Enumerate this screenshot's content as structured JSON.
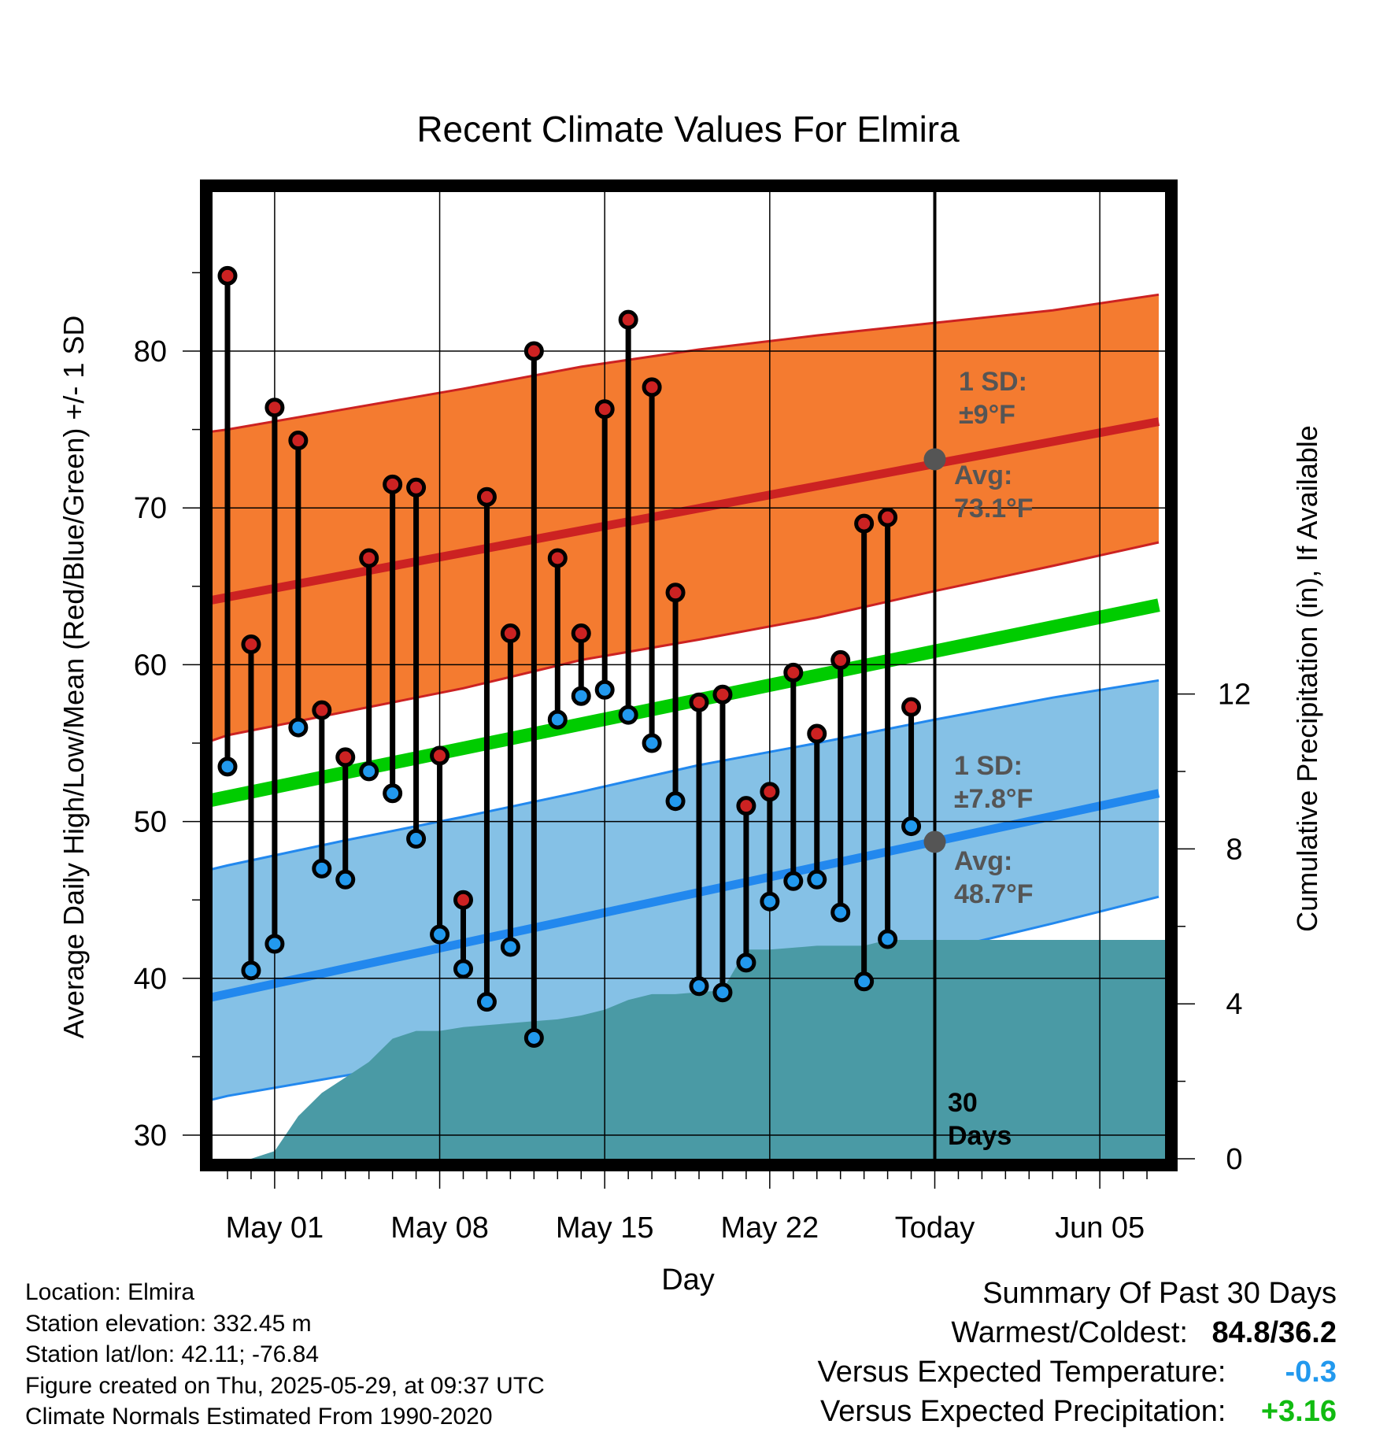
{
  "chart_data": {
    "type": "scatter",
    "title": "Recent Climate Values For Elmira",
    "xlabel": "Day",
    "ylabel": "Average Daily High/Low/Mean (Red/Blue/Green) +/- 1 SD",
    "y2label": "Cumulative Precipitation (in), If Available",
    "ylim": [
      28,
      90
    ],
    "y2lim": [
      0,
      30
    ],
    "yticks": [
      "30",
      "40",
      "50",
      "60",
      "70",
      "80"
    ],
    "y2ticks": [
      "0",
      "4",
      "8",
      "12"
    ],
    "xticks": [
      "May 01",
      "May 08",
      "May 15",
      "May 22",
      "Today",
      "Jun 05"
    ],
    "days": [
      "Apr 29",
      "Apr 30",
      "May 01",
      "May 02",
      "May 03",
      "May 04",
      "May 05",
      "May 06",
      "May 07",
      "May 08",
      "May 09",
      "May 10",
      "May 11",
      "May 12",
      "May 13",
      "May 14",
      "May 15",
      "May 16",
      "May 17",
      "May 18",
      "May 19",
      "May 20",
      "May 21",
      "May 22",
      "May 23",
      "May 24",
      "May 25",
      "May 26",
      "May 27",
      "May 28"
    ],
    "series": [
      {
        "name": "High",
        "color": "#cc2222",
        "values": [
          84.8,
          61.3,
          76.4,
          74.3,
          57.1,
          54.1,
          66.8,
          71.5,
          71.3,
          54.2,
          45.0,
          70.7,
          62.0,
          80.0,
          66.8,
          62.0,
          76.3,
          82.0,
          77.7,
          64.6,
          57.6,
          58.1,
          51.0,
          51.9,
          59.5,
          55.6,
          60.3,
          69.0,
          69.4,
          57.3
        ]
      },
      {
        "name": "Low",
        "color": "#2299ee",
        "values": [
          53.5,
          40.5,
          42.2,
          56.0,
          47.0,
          46.3,
          53.2,
          51.8,
          48.9,
          42.8,
          40.6,
          38.5,
          42.0,
          36.2,
          56.5,
          58.0,
          58.4,
          56.8,
          55.0,
          51.3,
          39.5,
          39.1,
          41.0,
          44.9,
          46.2,
          46.3,
          44.2,
          39.8,
          42.5,
          49.7
        ]
      },
      {
        "name": "Precipitation",
        "color": "#4a9aa5",
        "values": [
          0.0,
          0.0,
          0.2,
          1.1,
          1.7,
          2.1,
          2.5,
          3.1,
          3.3,
          3.3,
          3.4,
          3.45,
          3.5,
          3.55,
          3.6,
          3.7,
          3.85,
          4.1,
          4.25,
          4.25,
          4.3,
          4.35,
          5.4,
          5.4,
          5.45,
          5.5,
          5.5,
          5.5,
          5.65,
          5.65
        ]
      }
    ],
    "normals": {
      "mean_line": [
        [
          -2.5,
          50.8
        ],
        [
          39.5,
          63.8
        ]
      ],
      "high_avg": [
        [
          -2.5,
          63.6
        ],
        [
          39.5,
          75.5
        ]
      ],
      "high_sd_upper": [
        [
          -2.5,
          74.5
        ],
        [
          0,
          75.0
        ],
        [
          5,
          76.3
        ],
        [
          10,
          77.6
        ],
        [
          15,
          79.0
        ],
        [
          20,
          80.1
        ],
        [
          25,
          81.0
        ],
        [
          30,
          81.8
        ],
        [
          35,
          82.6
        ],
        [
          39.5,
          83.6
        ]
      ],
      "high_sd_lower": [
        [
          -2.5,
          54.2
        ],
        [
          0,
          55.5
        ],
        [
          5,
          57.0
        ],
        [
          10,
          58.5
        ],
        [
          15,
          60.3
        ],
        [
          20,
          61.6
        ],
        [
          25,
          63.0
        ],
        [
          30,
          64.7
        ],
        [
          35,
          66.3
        ],
        [
          39.5,
          67.8
        ]
      ],
      "low_avg": [
        [
          -2.5,
          38.2
        ],
        [
          39.5,
          51.8
        ]
      ],
      "low_sd_upper": [
        [
          -2.5,
          46.3
        ],
        [
          0,
          47.2
        ],
        [
          5,
          48.8
        ],
        [
          10,
          50.3
        ],
        [
          15,
          51.9
        ],
        [
          20,
          53.6
        ],
        [
          25,
          55.0
        ],
        [
          30,
          56.5
        ],
        [
          35,
          57.9
        ],
        [
          39.5,
          59.0
        ]
      ],
      "low_sd_lower": [
        [
          -2.5,
          31.6
        ],
        [
          0,
          32.5
        ],
        [
          5,
          33.8
        ],
        [
          10,
          35.2
        ],
        [
          15,
          36.7
        ],
        [
          20,
          38.5
        ],
        [
          25,
          40.0
        ],
        [
          30,
          41.7
        ],
        [
          35,
          43.5
        ],
        [
          39.5,
          45.2
        ]
      ]
    },
    "annotations": {
      "high_sd_label": "1 SD:",
      "high_sd_value": "±9°F",
      "high_avg_label": "Avg:",
      "high_avg_value": "73.1°F",
      "low_sd_label": "1 SD:",
      "low_sd_value": "±7.8°F",
      "low_avg_label": "Avg:",
      "low_avg_value": "48.7°F",
      "window_count": "30",
      "window_unit": "Days",
      "today_high_avg": 73.1,
      "today_low_avg": 48.7
    },
    "colors": {
      "high_band": "#f47b30",
      "high_line": "#cc2222",
      "low_band": "#85c1e6",
      "low_line": "#2288ee",
      "mean_line": "#00cc00",
      "precip_fill": "#4a9aa5",
      "marker_high": "#cc2222",
      "marker_low": "#2299ee",
      "marker_avg": "#555555"
    }
  },
  "info": {
    "location": "Location: Elmira",
    "elevation": "Station elevation: 332.45 m",
    "latlon": "Station lat/lon: 42.11; -76.84",
    "created": "Figure created on Thu, 2025-05-29, at 09:37 UTC",
    "normals": "Climate Normals Estimated From 1990-2020"
  },
  "summary": {
    "heading": "Summary Of Past 30 Days",
    "warm_cold_label": "Warmest/Coldest:",
    "warm_cold_value": "84.8/36.2",
    "temp_label": "Versus Expected Temperature:",
    "temp_value": "-0.3",
    "temp_color": "#2299ee",
    "precip_label": "Versus Expected Precipitation:",
    "precip_value": "+3.16",
    "precip_color": "#11bb11"
  }
}
